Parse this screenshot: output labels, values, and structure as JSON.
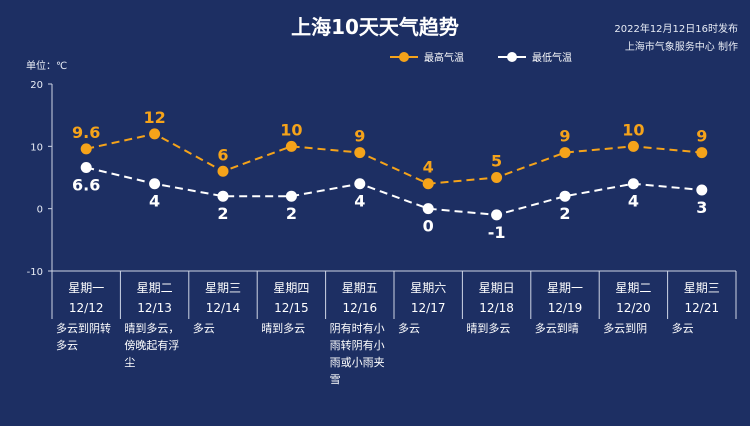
{
  "title": "上海10天天气趋势",
  "publish_time": "2022年12月12日16时发布",
  "producer": "上海市气象服务中心 制作",
  "unit_label": "单位：℃",
  "colors": {
    "background": "#1d2f63",
    "high": "#f5a31a",
    "low": "#ffffff"
  },
  "chart_data": {
    "type": "line",
    "ylim": [
      -10,
      20
    ],
    "yticks": [
      "20",
      "10",
      "0",
      "-10"
    ],
    "categories": [
      {
        "weekday": "星期一",
        "date": "12/12",
        "weather": "多云到阴转多云"
      },
      {
        "weekday": "星期二",
        "date": "12/13",
        "weather": "晴到多云，傍晚起有浮尘"
      },
      {
        "weekday": "星期三",
        "date": "12/14",
        "weather": "多云"
      },
      {
        "weekday": "星期四",
        "date": "12/15",
        "weather": "晴到多云"
      },
      {
        "weekday": "星期五",
        "date": "12/16",
        "weather": "阴有时有小雨转阴有小雨或小雨夹雪"
      },
      {
        "weekday": "星期六",
        "date": "12/17",
        "weather": "多云"
      },
      {
        "weekday": "星期日",
        "date": "12/18",
        "weather": "晴到多云"
      },
      {
        "weekday": "星期一",
        "date": "12/19",
        "weather": "多云到晴"
      },
      {
        "weekday": "星期二",
        "date": "12/20",
        "weather": "多云到阴"
      },
      {
        "weekday": "星期三",
        "date": "12/21",
        "weather": "多云"
      }
    ],
    "series": [
      {
        "name": "最高气温",
        "values": [
          9.6,
          12,
          6,
          10,
          9,
          4,
          5,
          9,
          10,
          9
        ],
        "labels": [
          "9.6",
          "12",
          "6",
          "10",
          "9",
          "4",
          "5",
          "9",
          "10",
          "9"
        ]
      },
      {
        "name": "最低气温",
        "values": [
          6.6,
          4,
          2,
          2,
          4,
          0,
          -1,
          2,
          4,
          3
        ],
        "labels": [
          "6.6",
          "4",
          "2",
          "2",
          "4",
          "0",
          "-1",
          "2",
          "4",
          "3"
        ]
      }
    ],
    "legend_position": "top-right",
    "grid": false
  }
}
